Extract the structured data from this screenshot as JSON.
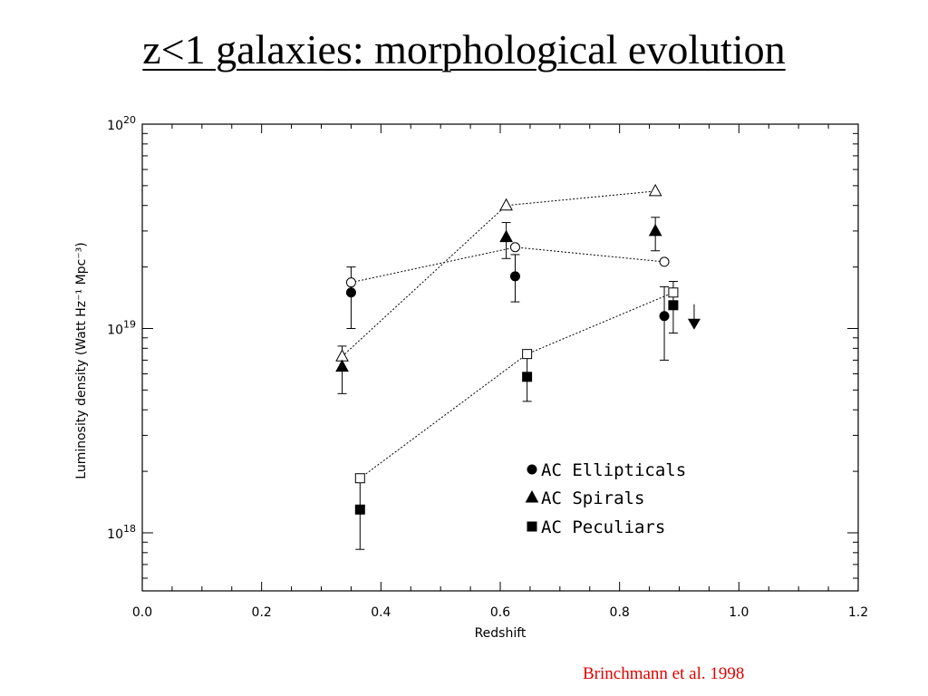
{
  "slide": {
    "title": "z<1 galaxies: morphological evolution",
    "credit": "Brinchmann et al. 1998"
  },
  "chart_data": {
    "type": "scatter",
    "title": "",
    "xlabel": "Redshift",
    "ylabel": "Luminosity density (Watt Hz⁻¹ Mpc⁻³)",
    "xlim": [
      0.0,
      1.2
    ],
    "ylim": [
      5.2e+17,
      1e+20
    ],
    "yscale": "log",
    "x_ticks": [
      "0.0",
      "0.2",
      "0.4",
      "0.6",
      "0.8",
      "1.0",
      "1.2"
    ],
    "y_ticks": [
      {
        "value": 1e+18,
        "base": "10",
        "exp": "18"
      },
      {
        "value": 1e+19,
        "base": "10",
        "exp": "19"
      },
      {
        "value": 1e+20,
        "base": "10",
        "exp": "20"
      }
    ],
    "grid": false,
    "legend_position": "bottom-right",
    "series": [
      {
        "name": "AC Ellipticals",
        "marker": "circle",
        "points": [
          {
            "x": 0.35,
            "y": 1.5e+19,
            "ylo": 1e+19,
            "yhi": 2e+19
          },
          {
            "x": 0.625,
            "y": 1.8e+19,
            "ylo": 1.35e+19,
            "yhi": 2.3e+19
          },
          {
            "x": 0.875,
            "y": 1.15e+19,
            "ylo": 7e+18,
            "yhi": 1.6e+19
          }
        ]
      },
      {
        "name": "AC Spirals",
        "marker": "triangle",
        "points": [
          {
            "x": 0.335,
            "y": 6.5e+18,
            "ylo": 4.8e+18,
            "yhi": 8.2e+18
          },
          {
            "x": 0.61,
            "y": 2.8e+19,
            "ylo": 2.2e+19,
            "yhi": 3.3e+19
          },
          {
            "x": 0.86,
            "y": 3e+19,
            "ylo": 2.4e+19,
            "yhi": 3.5e+19
          }
        ]
      },
      {
        "name": "AC Peculiars",
        "marker": "square",
        "points": [
          {
            "x": 0.365,
            "y": 1.3e+18,
            "ylo": 8.3e+17,
            "yhi": 1.85e+18
          },
          {
            "x": 0.645,
            "y": 5.8e+18,
            "ylo": 4.4e+18,
            "yhi": 7.5e+18
          },
          {
            "x": 0.89,
            "y": 1.3e+19,
            "ylo": 9.5e+18,
            "yhi": 1.7e+19
          }
        ]
      }
    ],
    "corrected_series": [
      {
        "marker": "circle",
        "points": [
          {
            "x": 0.35,
            "y": 1.68e+19
          },
          {
            "x": 0.625,
            "y": 2.5e+19
          },
          {
            "x": 0.875,
            "y": 2.12e+19
          }
        ]
      },
      {
        "marker": "triangle",
        "points": [
          {
            "x": 0.335,
            "y": 7.3e+18
          },
          {
            "x": 0.61,
            "y": 4e+19
          },
          {
            "x": 0.86,
            "y": 4.7e+19
          }
        ]
      },
      {
        "marker": "square",
        "points": [
          {
            "x": 0.365,
            "y": 1.85e+18
          },
          {
            "x": 0.645,
            "y": 7.5e+18
          },
          {
            "x": 0.89,
            "y": 1.5e+19
          }
        ]
      }
    ],
    "upper_limits": [
      {
        "x": 0.925,
        "y": 1.05e+19,
        "marker": "arrow-down"
      }
    ]
  }
}
